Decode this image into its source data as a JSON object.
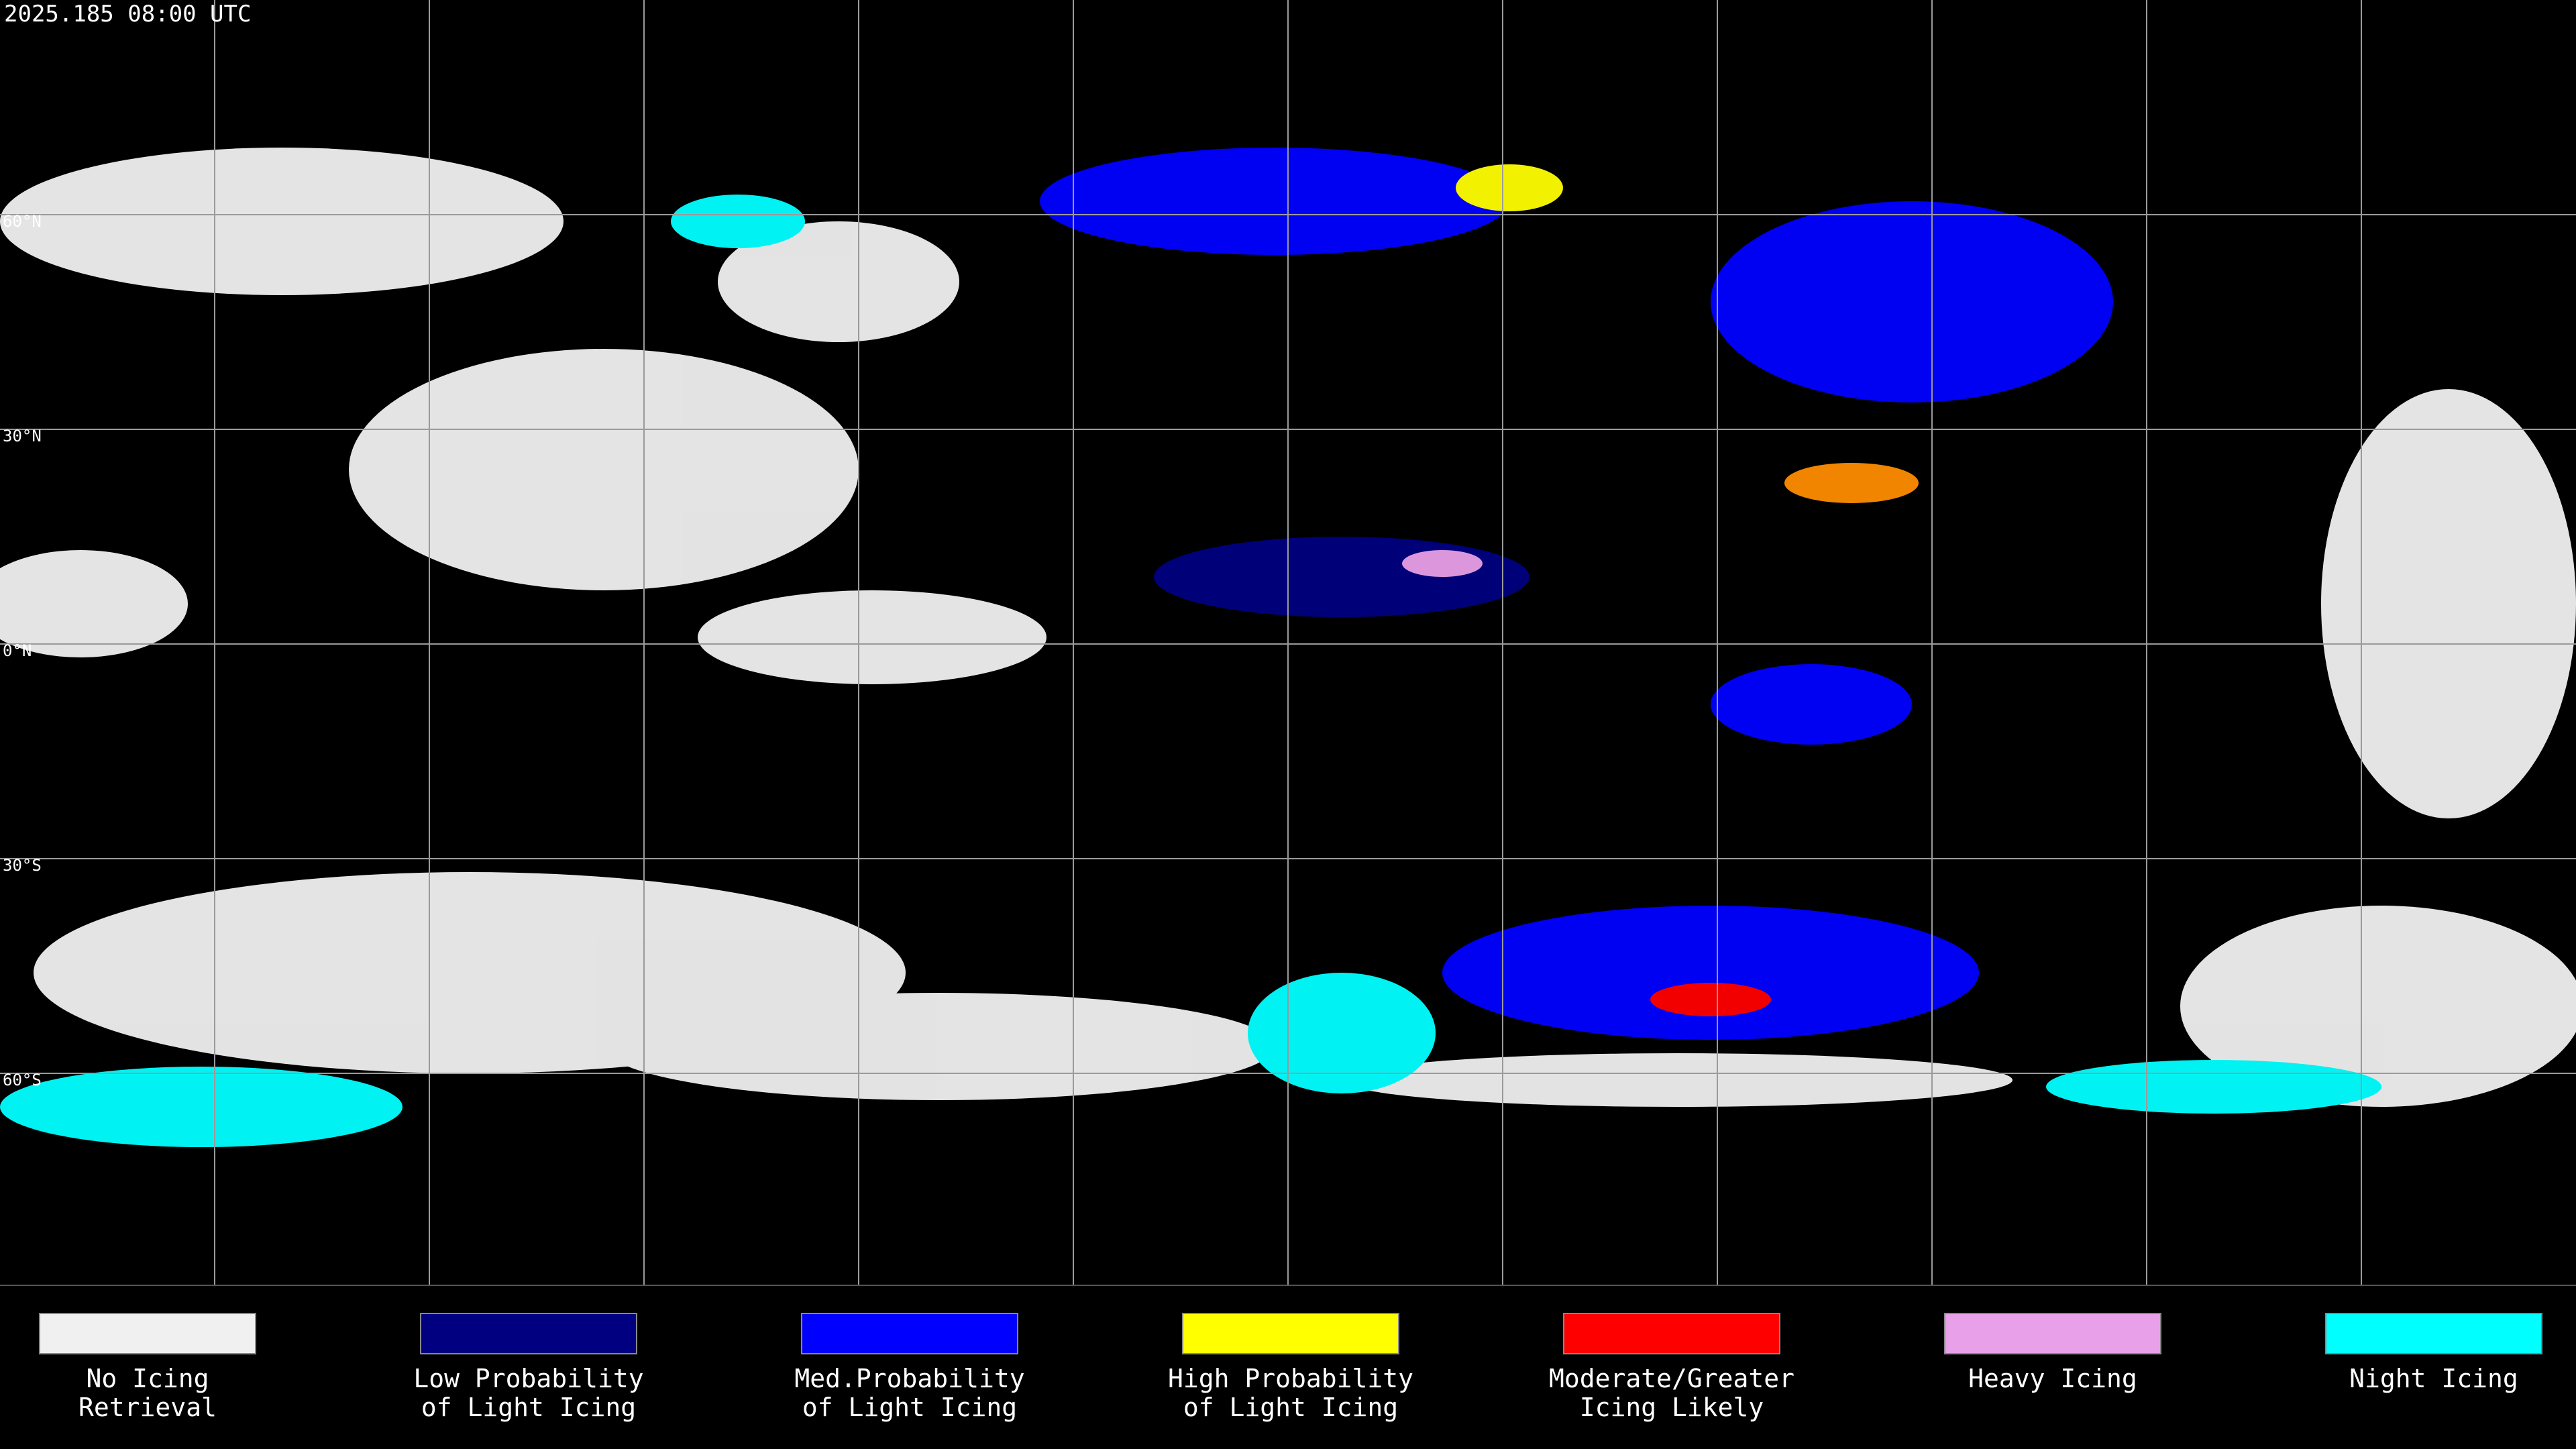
{
  "header": {
    "timestamp": "2025.185 08:00 UTC"
  },
  "map": {
    "lat_labels": [
      "60°N",
      "30°N",
      "0°N",
      "30°S",
      "60°S"
    ]
  },
  "legend": [
    {
      "label_lines": [
        "No Icing",
        "Retrieval"
      ],
      "color": "#f0f0f0"
    },
    {
      "label_lines": [
        "Low Probability",
        "of Light Icing"
      ],
      "color": "#000080"
    },
    {
      "label_lines": [
        "Med.Probability",
        "of Light Icing"
      ],
      "color": "#0000ff"
    },
    {
      "label_lines": [
        "High Probability",
        "of Light Icing"
      ],
      "color": "#ffff00"
    },
    {
      "label_lines": [
        "Moderate/Greater",
        "Icing Likely"
      ],
      "color": "#ff0000"
    },
    {
      "label_lines": [
        "Heavy Icing"
      ],
      "color": "#e8a0e8"
    },
    {
      "label_lines": [
        "Night Icing"
      ],
      "color": "#00ffff"
    }
  ]
}
